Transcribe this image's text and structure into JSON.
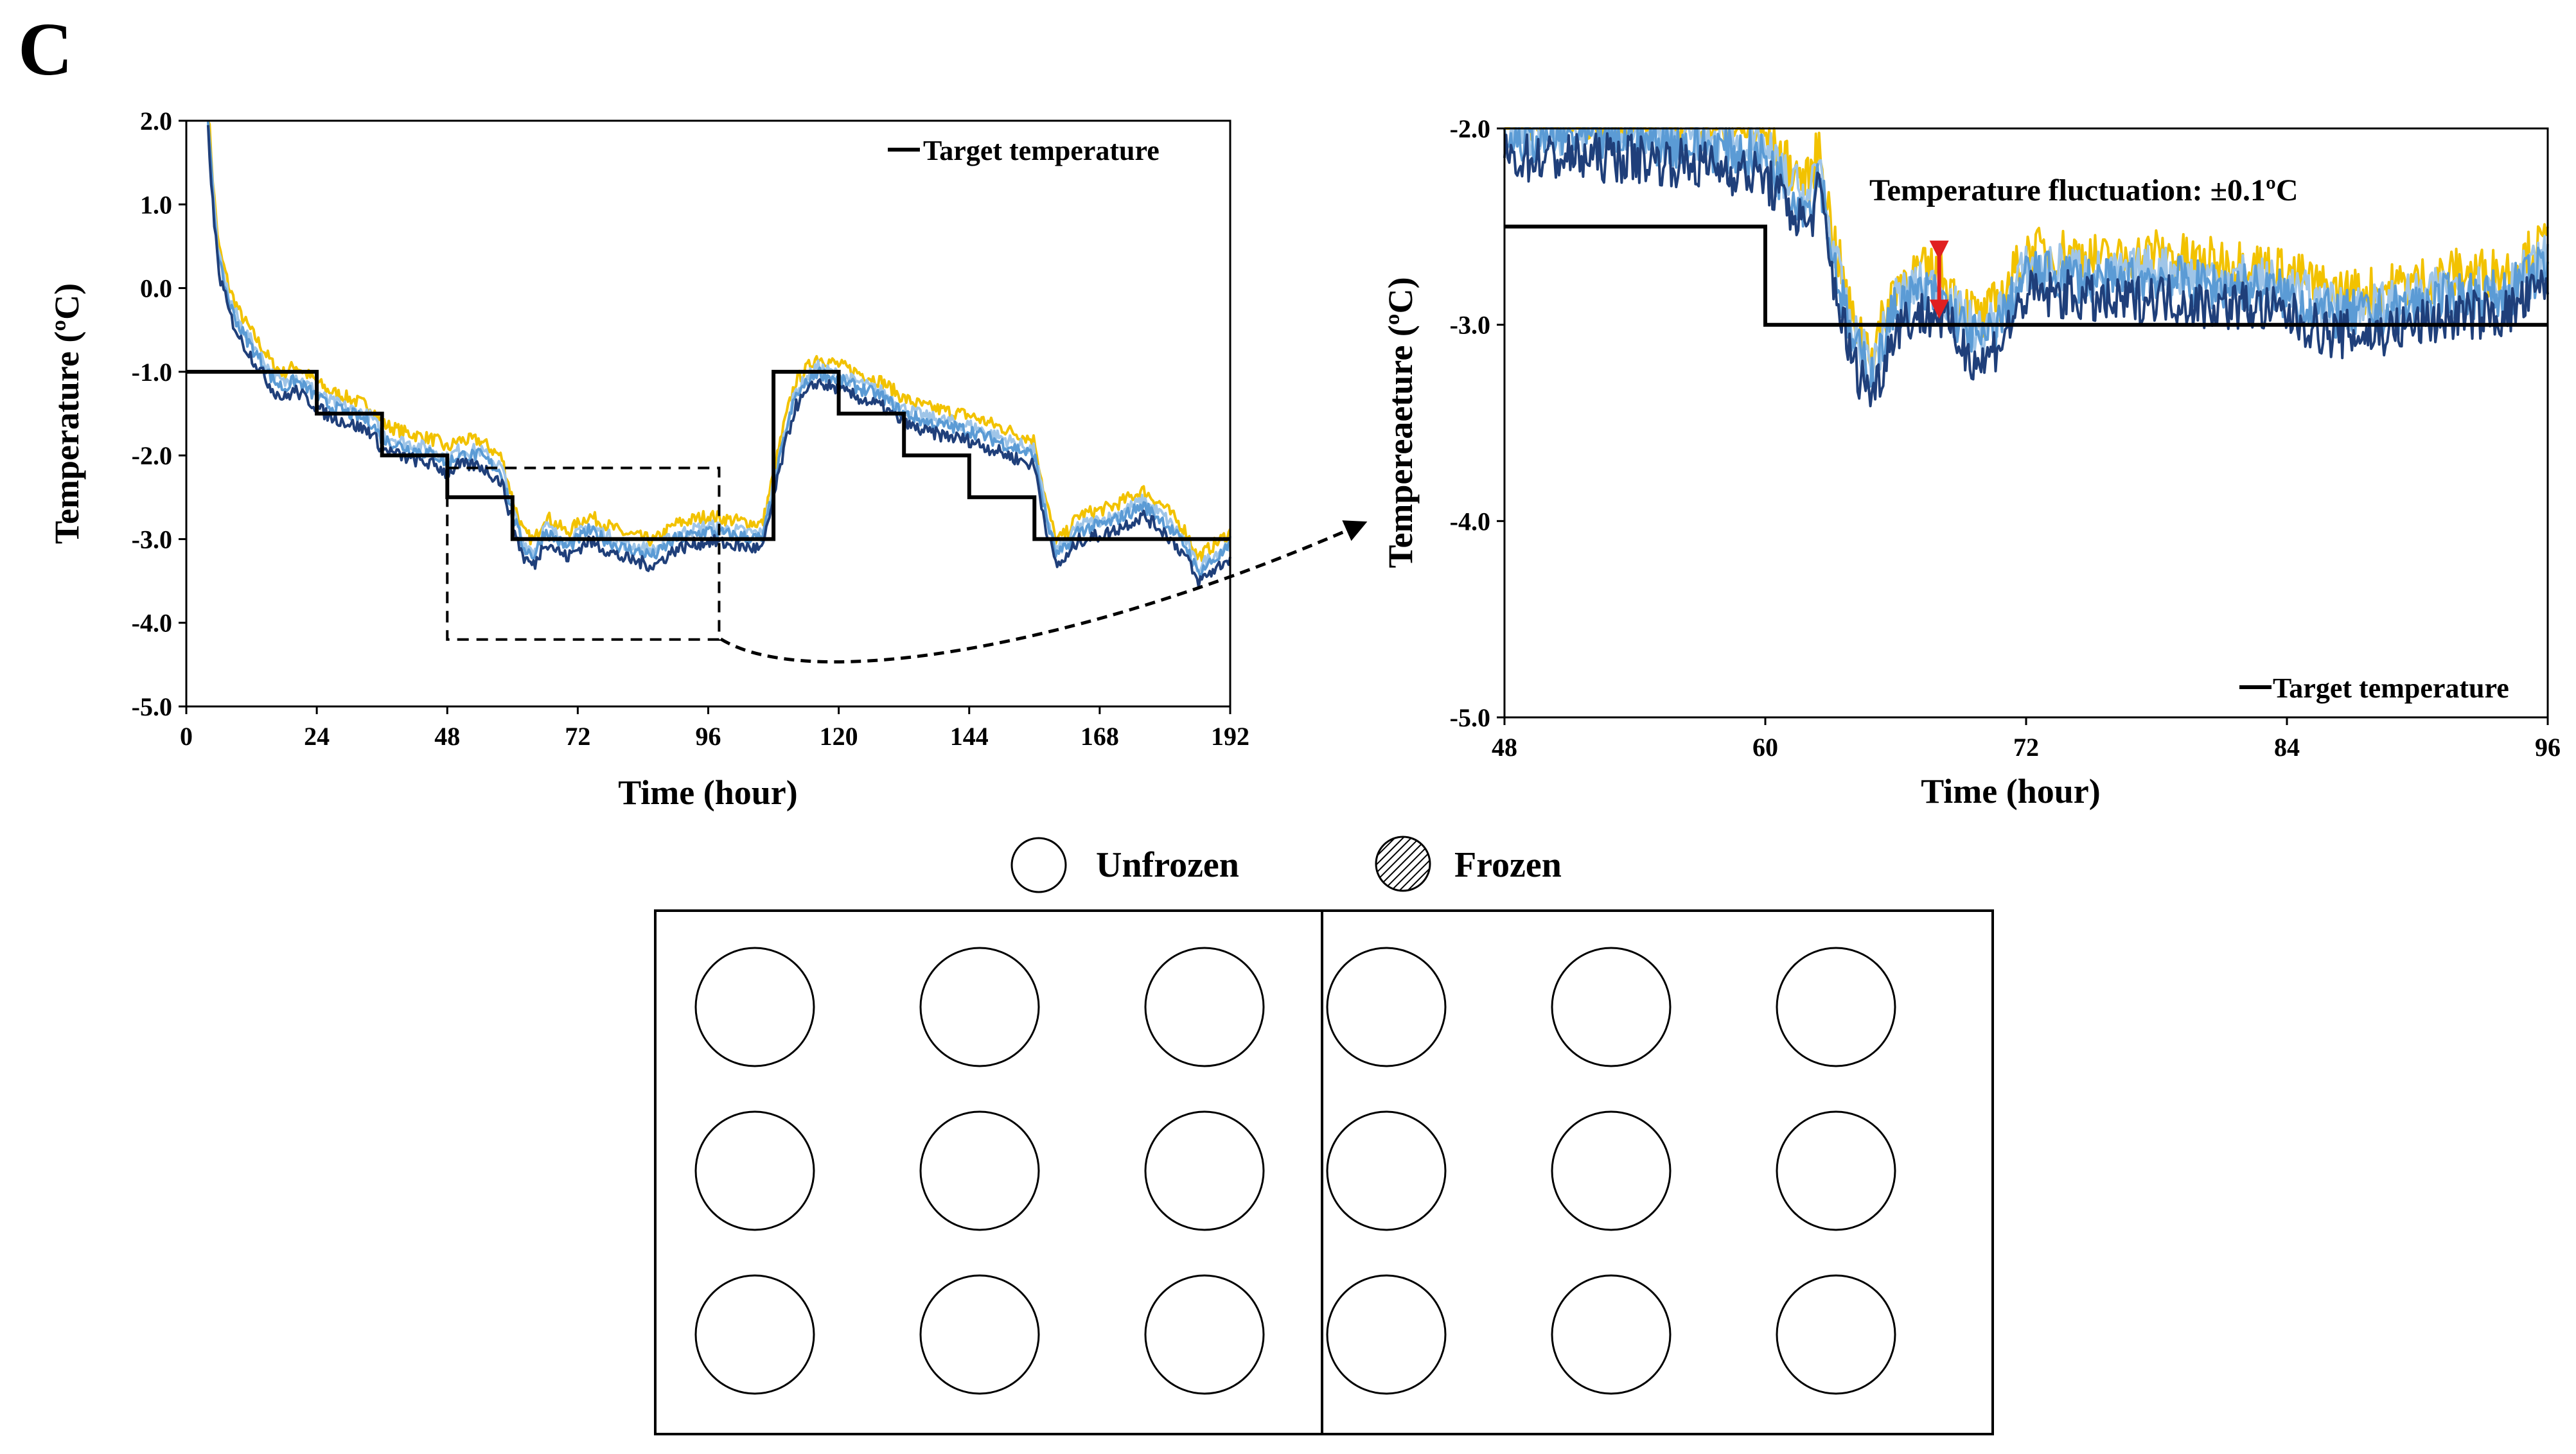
{
  "panel_label": "C",
  "chart_data": [
    {
      "type": "line",
      "xlabel": "Time (hour)",
      "ylabel": "Temperature (ºC)",
      "xlim": [
        0,
        192
      ],
      "ylim": [
        -5.0,
        2.0
      ],
      "x_ticks": [
        "0",
        "24",
        "48",
        "72",
        "96",
        "120",
        "144",
        "168",
        "192"
      ],
      "y_ticks": [
        "2.0",
        "1.0",
        "0.0",
        "-1.0",
        "-2.0",
        "-3.0",
        "-4.0",
        "-5.0"
      ],
      "grid": false,
      "legend": {
        "position": "top-right",
        "entries": [
          "Target temperature"
        ]
      },
      "zoom_region": {
        "x": [
          48,
          98
        ],
        "y": [
          -4.2,
          -2.15
        ]
      },
      "target_series": {
        "name": "Target temperature",
        "color": "#000000",
        "points": [
          [
            0,
            -1.0
          ],
          [
            24,
            -1.0
          ],
          [
            24,
            -1.5
          ],
          [
            36,
            -1.5
          ],
          [
            36,
            -2.0
          ],
          [
            48,
            -2.0
          ],
          [
            48,
            -2.5
          ],
          [
            60,
            -2.5
          ],
          [
            60,
            -3.0
          ],
          [
            108,
            -3.0
          ],
          [
            108,
            -1.0
          ],
          [
            120,
            -1.0
          ],
          [
            120,
            -1.5
          ],
          [
            132,
            -1.5
          ],
          [
            132,
            -2.0
          ],
          [
            144,
            -2.0
          ],
          [
            144,
            -2.5
          ],
          [
            156,
            -2.5
          ],
          [
            156,
            -3.0
          ],
          [
            192,
            -3.0
          ]
        ]
      },
      "measured_series": [
        {
          "color": "#f2c200",
          "offset": 0.18
        },
        {
          "color": "#9fc5e8",
          "offset": 0.06
        },
        {
          "color": "#5b9bd5",
          "offset": 0.0
        },
        {
          "color": "#1f3f7a",
          "offset": -0.12
        }
      ],
      "measured_trend": [
        [
          4,
          2.0
        ],
        [
          5,
          1.0
        ],
        [
          6,
          0.3
        ],
        [
          8,
          -0.2
        ],
        [
          10,
          -0.5
        ],
        [
          12,
          -0.7
        ],
        [
          14,
          -0.9
        ],
        [
          16,
          -1.1
        ],
        [
          18,
          -1.2
        ],
        [
          20,
          -1.1
        ],
        [
          22,
          -1.2
        ],
        [
          24,
          -1.3
        ],
        [
          26,
          -1.4
        ],
        [
          30,
          -1.5
        ],
        [
          34,
          -1.6
        ],
        [
          36,
          -1.8
        ],
        [
          40,
          -1.9
        ],
        [
          46,
          -2.0
        ],
        [
          48,
          -2.1
        ],
        [
          50,
          -2.0
        ],
        [
          54,
          -2.0
        ],
        [
          58,
          -2.2
        ],
        [
          60,
          -2.7
        ],
        [
          62,
          -3.1
        ],
        [
          64,
          -3.2
        ],
        [
          66,
          -2.9
        ],
        [
          68,
          -3.0
        ],
        [
          70,
          -3.1
        ],
        [
          72,
          -3.0
        ],
        [
          74,
          -2.9
        ],
        [
          80,
          -3.1
        ],
        [
          86,
          -3.2
        ],
        [
          90,
          -3.0
        ],
        [
          96,
          -2.9
        ],
        [
          100,
          -2.95
        ],
        [
          106,
          -3.0
        ],
        [
          108,
          -2.4
        ],
        [
          110,
          -1.8
        ],
        [
          112,
          -1.3
        ],
        [
          116,
          -1.0
        ],
        [
          120,
          -1.1
        ],
        [
          124,
          -1.2
        ],
        [
          128,
          -1.3
        ],
        [
          132,
          -1.5
        ],
        [
          136,
          -1.6
        ],
        [
          144,
          -1.7
        ],
        [
          148,
          -1.8
        ],
        [
          156,
          -2.0
        ],
        [
          158,
          -2.7
        ],
        [
          160,
          -3.2
        ],
        [
          162,
          -3.1
        ],
        [
          164,
          -2.9
        ],
        [
          170,
          -2.8
        ],
        [
          176,
          -2.6
        ],
        [
          180,
          -2.8
        ],
        [
          184,
          -3.1
        ],
        [
          186,
          -3.4
        ],
        [
          188,
          -3.3
        ],
        [
          192,
          -3.1
        ]
      ]
    },
    {
      "type": "line",
      "xlabel": "Time (hour)",
      "ylabel": "Tempereaeture (ºC)",
      "xlim": [
        48,
        96
      ],
      "ylim": [
        -5.0,
        -2.0
      ],
      "x_ticks": [
        "48",
        "60",
        "72",
        "84",
        "96"
      ],
      "y_ticks": [
        "-2.0",
        "-3.0",
        "-4.0",
        "-5.0"
      ],
      "grid": false,
      "legend": {
        "position": "bottom-right",
        "entries": [
          "Target temperature"
        ]
      },
      "annotation": {
        "text": "Temperature fluctuation: ±0.1ºC",
        "arrow_color": "#e02020",
        "arrow_x": 68,
        "arrow_y": [
          -2.65,
          -2.95
        ]
      },
      "target_series": {
        "name": "Target temperature",
        "color": "#000000",
        "points": [
          [
            48,
            -2.5
          ],
          [
            60,
            -2.5
          ],
          [
            60,
            -3.0
          ],
          [
            96,
            -3.0
          ]
        ]
      },
      "measured_series": [
        {
          "color": "#f2c200",
          "offset": 0.12
        },
        {
          "color": "#9fc5e8",
          "offset": 0.04
        },
        {
          "color": "#5b9bd5",
          "offset": 0.0
        },
        {
          "color": "#1f3f7a",
          "offset": -0.1
        }
      ],
      "measured_trend": [
        [
          48,
          -2.05
        ],
        [
          50,
          -2.05
        ],
        [
          54,
          -2.05
        ],
        [
          58,
          -2.1
        ],
        [
          60,
          -2.15
        ],
        [
          61,
          -2.3
        ],
        [
          62,
          -2.4
        ],
        [
          62.5,
          -2.2
        ],
        [
          63,
          -2.6
        ],
        [
          64,
          -3.1
        ],
        [
          65,
          -3.25
        ],
        [
          66,
          -2.9
        ],
        [
          67,
          -2.85
        ],
        [
          68,
          -2.85
        ],
        [
          69,
          -3.0
        ],
        [
          70,
          -3.1
        ],
        [
          71,
          -2.95
        ],
        [
          72,
          -2.75
        ],
        [
          74,
          -2.75
        ],
        [
          76,
          -2.8
        ],
        [
          78,
          -2.75
        ],
        [
          80,
          -2.8
        ],
        [
          82,
          -2.8
        ],
        [
          84,
          -2.85
        ],
        [
          86,
          -2.95
        ],
        [
          88,
          -2.95
        ],
        [
          90,
          -2.9
        ],
        [
          92,
          -2.85
        ],
        [
          94,
          -2.85
        ],
        [
          96,
          -2.7
        ]
      ]
    }
  ],
  "plate": {
    "legend": {
      "unfrozen_label": "Unfrozen",
      "frozen_label": "Frozen"
    },
    "grids": [
      {
        "states": [
          "unfrozen",
          "unfrozen",
          "unfrozen",
          "unfrozen",
          "unfrozen",
          "unfrozen",
          "unfrozen",
          "unfrozen",
          "unfrozen"
        ]
      },
      {
        "states": [
          "unfrozen",
          "unfrozen",
          "unfrozen",
          "unfrozen",
          "unfrozen",
          "unfrozen",
          "unfrozen",
          "unfrozen",
          "unfrozen"
        ]
      }
    ]
  }
}
